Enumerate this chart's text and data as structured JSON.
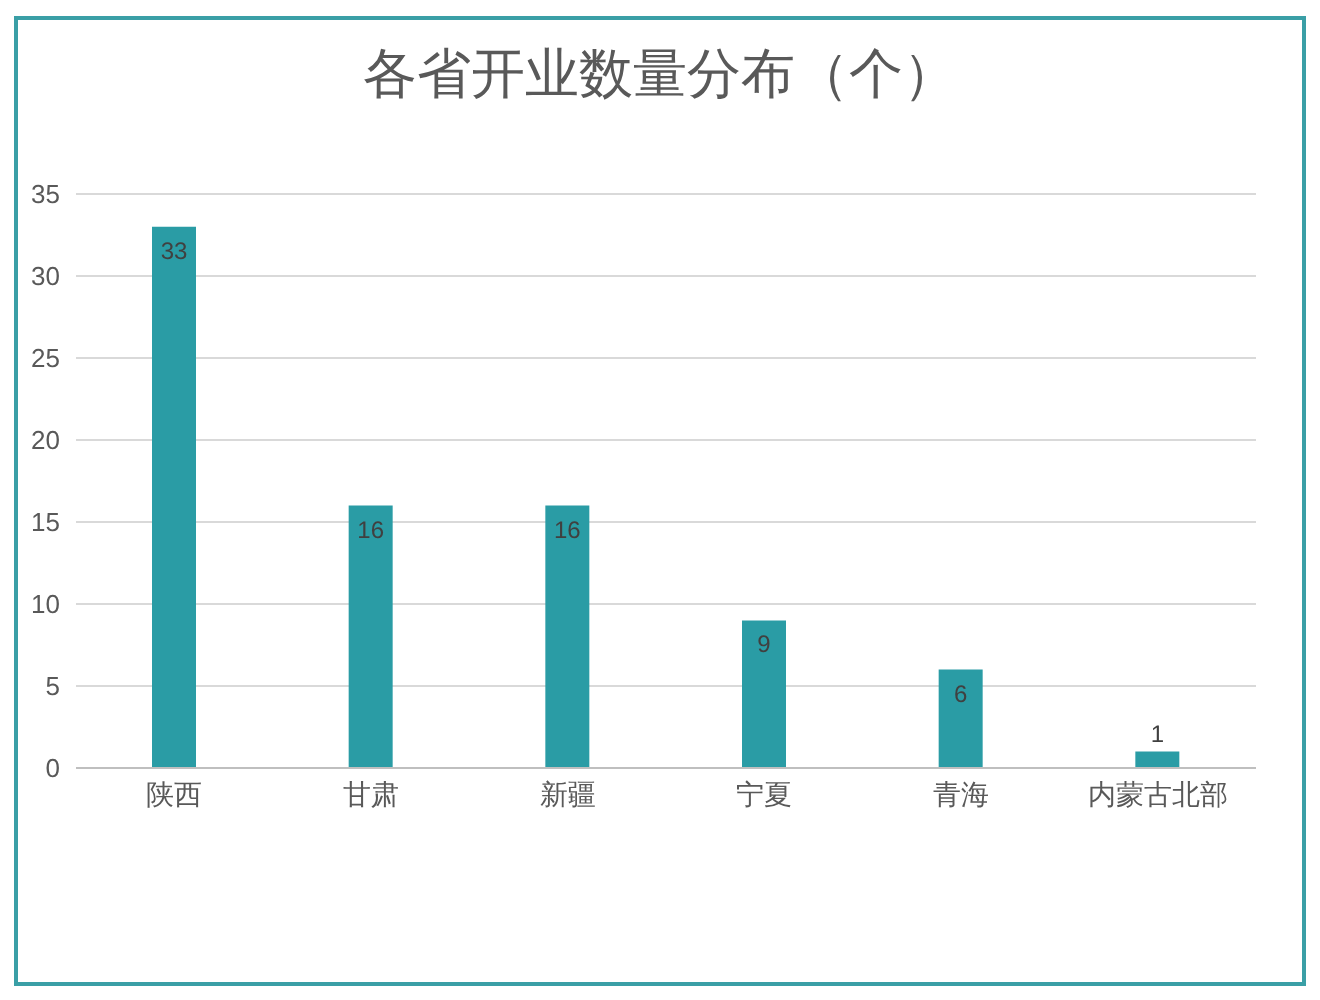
{
  "chart_data": {
    "type": "bar",
    "title": "各省开业数量分布（个）",
    "categories": [
      "陕西",
      "甘肃",
      "新疆",
      "宁夏",
      "青海",
      "内蒙古北部"
    ],
    "values": [
      33,
      16,
      16,
      9,
      6,
      1
    ],
    "color": "#2a9ca5",
    "ylim": [
      0,
      35
    ],
    "yticks": [
      0,
      5,
      10,
      15,
      20,
      25,
      30,
      35
    ],
    "grid": "y",
    "data_labels": true
  }
}
